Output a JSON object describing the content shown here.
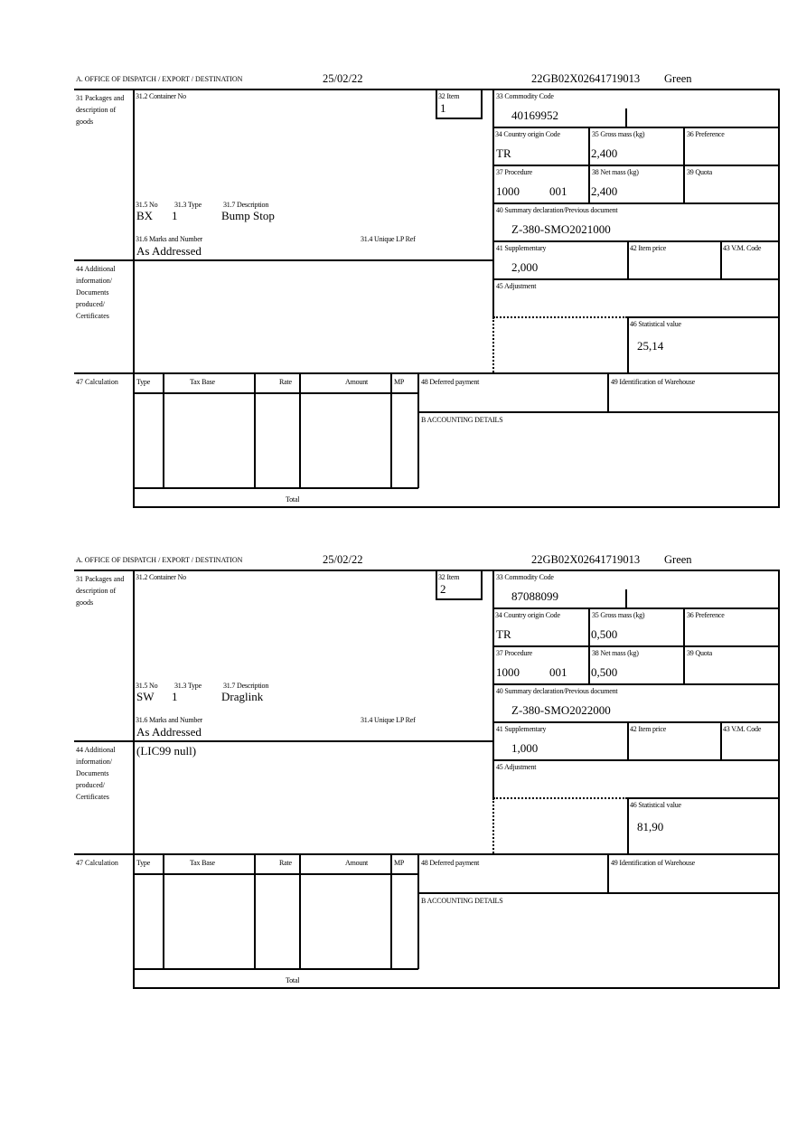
{
  "labels": {
    "office": "A. OFFICE OF DISPATCH / EXPORT / DESTINATION",
    "packages": "31 Packages and description of goods",
    "container": "31.2 Container No",
    "item": "32 Item",
    "commodity": "33 Commodity Code",
    "country": "34 Country origin Code",
    "gross": "35 Gross mass (kg)",
    "preference": "36 Preference",
    "procedure": "37 Procedure",
    "net": "38 Net mass (kg)",
    "quota": "39 Quota",
    "summary": "40 Summary declaration/Previous document",
    "supplementary": "41 Supplementary",
    "item_price": "42 Item price",
    "vm_code": "43 V.M. Code",
    "adjustment": "45 Adjustment",
    "statistical": "46 Statistical value",
    "no": "31.5 No",
    "type": "31.3 Type",
    "description": "31.7 Description",
    "marks": "31.6 Marks and Number",
    "unique_ref": "31.4 Unique LP Ref",
    "additional": "44 Additional information/ Documents produced/ Certificates",
    "calculation": "47 Calculation",
    "calc_cols": [
      "Type",
      "Tax Base",
      "Rate",
      "Amount",
      "MP"
    ],
    "total": "Total",
    "deferred": "48 Deferred payment",
    "warehouse": "49 Identification of Warehouse",
    "accounting": "B ACCOUNTING DETAILS"
  },
  "forms": [
    {
      "date": "25/02/22",
      "reference": "22GB02X02641719013",
      "route": "Green",
      "item": "1",
      "commodity_code": "40169952",
      "country_origin": "TR",
      "gross_mass": "2,400",
      "procedure": "1000",
      "procedure_add": "001",
      "net_mass": "2,400",
      "previous_document": "Z-380-SMO2021000",
      "supplementary": "2,000",
      "statistical_value": "25,14",
      "package_no": "BX",
      "package_type": "1",
      "description": "Bump Stop",
      "marks": "As Addressed",
      "additional_info": ""
    },
    {
      "date": "25/02/22",
      "reference": "22GB02X02641719013",
      "route": "Green",
      "item": "2",
      "commodity_code": "87088099",
      "country_origin": "TR",
      "gross_mass": "0,500",
      "procedure": "1000",
      "procedure_add": "001",
      "net_mass": "0,500",
      "previous_document": "Z-380-SMO2022000",
      "supplementary": "1,000",
      "statistical_value": "81,90",
      "package_no": "SW",
      "package_type": "1",
      "description": "Draglink",
      "marks": "As Addressed",
      "additional_info": "(LIC99 null)"
    }
  ]
}
